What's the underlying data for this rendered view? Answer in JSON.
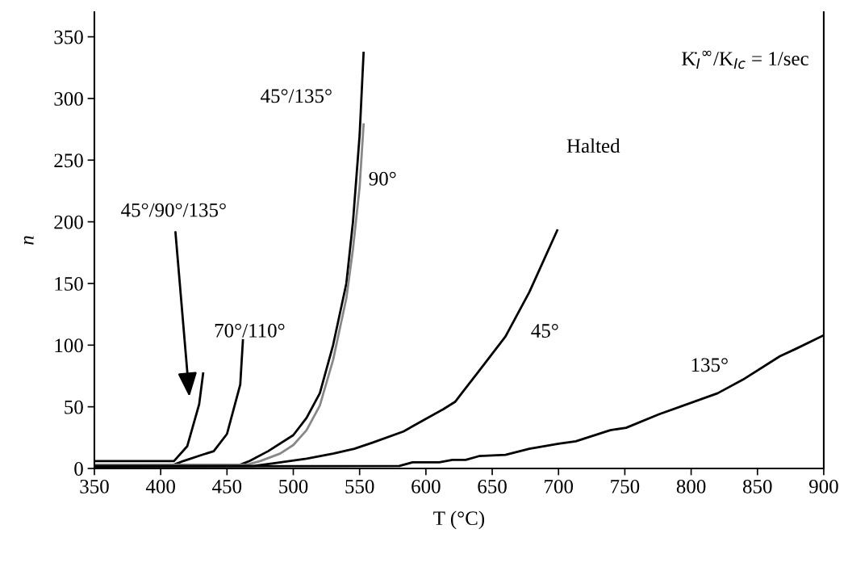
{
  "chart_data": {
    "type": "line",
    "xlabel": "T (°C)",
    "ylabel": "n",
    "xlim": [
      350,
      900
    ],
    "xticks": [
      350,
      400,
      450,
      500,
      550,
      600,
      650,
      700,
      750,
      800,
      850,
      900
    ],
    "ylim": [
      0,
      370
    ],
    "yticks": [
      0,
      50,
      100,
      150,
      200,
      250,
      300,
      350
    ],
    "grid": false,
    "legend": false,
    "marker": "none",
    "line_style": "solid",
    "series": [
      {
        "name": "45°/90°/135°",
        "color": "#000000",
        "x": [
          350,
          410,
          420,
          429,
          432
        ],
        "values": [
          6,
          6,
          18,
          52,
          77
        ]
      },
      {
        "name": "70°/110°",
        "color": "#000000",
        "x": [
          350,
          410,
          417,
          431,
          440,
          450,
          460,
          462
        ],
        "values": [
          3,
          3,
          6,
          11,
          14,
          28,
          68,
          104
        ]
      },
      {
        "name": "45°/135°",
        "color": "#000000",
        "x": [
          350,
          460,
          467,
          481,
          500,
          510,
          520,
          530,
          540,
          545,
          550,
          553
        ],
        "values": [
          3,
          3,
          6,
          14,
          27,
          41,
          61,
          100,
          150,
          200,
          270,
          337
        ]
      },
      {
        "name": "90°",
        "color": "#888888",
        "x": [
          350,
          465,
          475,
          490,
          500,
          510,
          520,
          530,
          540,
          545,
          550,
          553
        ],
        "values": [
          3,
          3,
          6,
          12,
          19,
          31,
          51,
          88,
          138,
          178,
          228,
          279
        ]
      },
      {
        "name": "45°",
        "color": "#000000",
        "x": [
          350,
          470,
          484,
          510,
          530,
          546,
          560,
          583,
          613,
          622,
          627,
          640,
          660,
          678,
          699
        ],
        "values": [
          2,
          2,
          4,
          8,
          12,
          16,
          21,
          30,
          48,
          54,
          61,
          79,
          107,
          143,
          193
        ]
      },
      {
        "name": "135°",
        "color": "#000000",
        "x": [
          350,
          580,
          590,
          610,
          620,
          630,
          640,
          660,
          678,
          700,
          713,
          739,
          751,
          776,
          820,
          839,
          867,
          879,
          900
        ],
        "values": [
          1.5,
          2,
          5,
          5,
          7,
          7,
          10,
          11,
          16,
          20,
          22,
          31,
          33,
          44,
          61,
          72,
          91,
          97,
          108
        ]
      }
    ],
    "annotations": [
      "Halted",
      "K̇$_{I}$$^{∞}$/K$_{Ic}$ = 1/sec"
    ]
  }
}
